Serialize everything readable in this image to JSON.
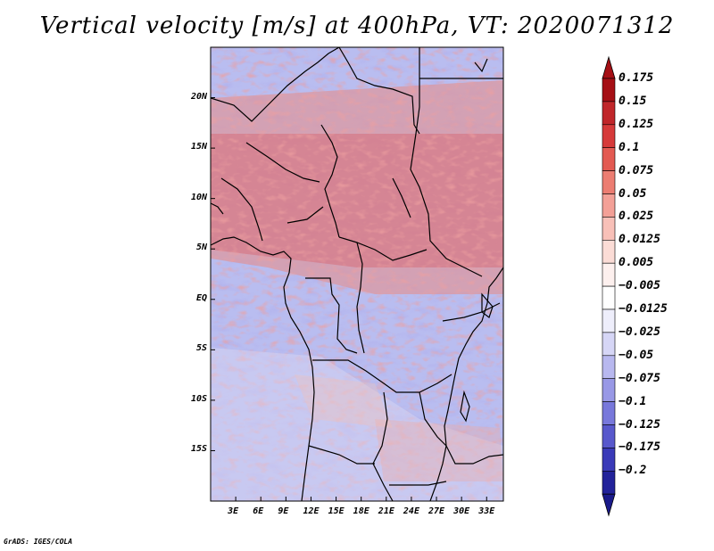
{
  "title": "Vertical velocity [m/s] at 400hPa, VT: 2020071312",
  "credit": "GrADS: IGES/COLA",
  "map": {
    "lon_range": [
      0,
      35
    ],
    "lat_range": [
      -20,
      25
    ],
    "x_ticks": [
      {
        "value": 3,
        "label": "3E"
      },
      {
        "value": 6,
        "label": "6E"
      },
      {
        "value": 9,
        "label": "9E"
      },
      {
        "value": 12,
        "label": "12E"
      },
      {
        "value": 15,
        "label": "15E"
      },
      {
        "value": 18,
        "label": "18E"
      },
      {
        "value": 21,
        "label": "21E"
      },
      {
        "value": 24,
        "label": "24E"
      },
      {
        "value": 27,
        "label": "27E"
      },
      {
        "value": 30,
        "label": "30E"
      },
      {
        "value": 33,
        "label": "33E"
      }
    ],
    "y_ticks": [
      {
        "value": 20,
        "label": "20N"
      },
      {
        "value": 15,
        "label": "15N"
      },
      {
        "value": 10,
        "label": "10N"
      },
      {
        "value": 5,
        "label": "5N"
      },
      {
        "value": 0,
        "label": "EQ"
      },
      {
        "value": -5,
        "label": "5S"
      },
      {
        "value": -10,
        "label": "10S"
      },
      {
        "value": -15,
        "label": "15S"
      }
    ]
  },
  "colorbar": {
    "levels": [
      {
        "label": "0.175",
        "color": "#a50f15"
      },
      {
        "label": "0.15",
        "color": "#c0262a"
      },
      {
        "label": "0.125",
        "color": "#d63a3a"
      },
      {
        "label": "0.1",
        "color": "#e35a52"
      },
      {
        "label": "0.075",
        "color": "#ec7d72"
      },
      {
        "label": "0.05",
        "color": "#f3a097"
      },
      {
        "label": "0.025",
        "color": "#f8c0b8"
      },
      {
        "label": "0.0125",
        "color": "#fbdcd6"
      },
      {
        "label": "0.005",
        "color": "#fdf0ee"
      },
      {
        "label": "−0.005",
        "color": "#ffffff"
      },
      {
        "label": "−0.0125",
        "color": "#eeeefb"
      },
      {
        "label": "−0.025",
        "color": "#d6d6f6"
      },
      {
        "label": "−0.05",
        "color": "#b8b8ef"
      },
      {
        "label": "−0.075",
        "color": "#9898e6"
      },
      {
        "label": "−0.1",
        "color": "#7878db"
      },
      {
        "label": "−0.125",
        "color": "#5858cc"
      },
      {
        "label": "−0.175",
        "color": "#3a3ab8"
      },
      {
        "label": "−0.2",
        "color": "#22229a"
      }
    ],
    "top_color": "#a50f15",
    "bottom_color": "#1a1a8a"
  }
}
